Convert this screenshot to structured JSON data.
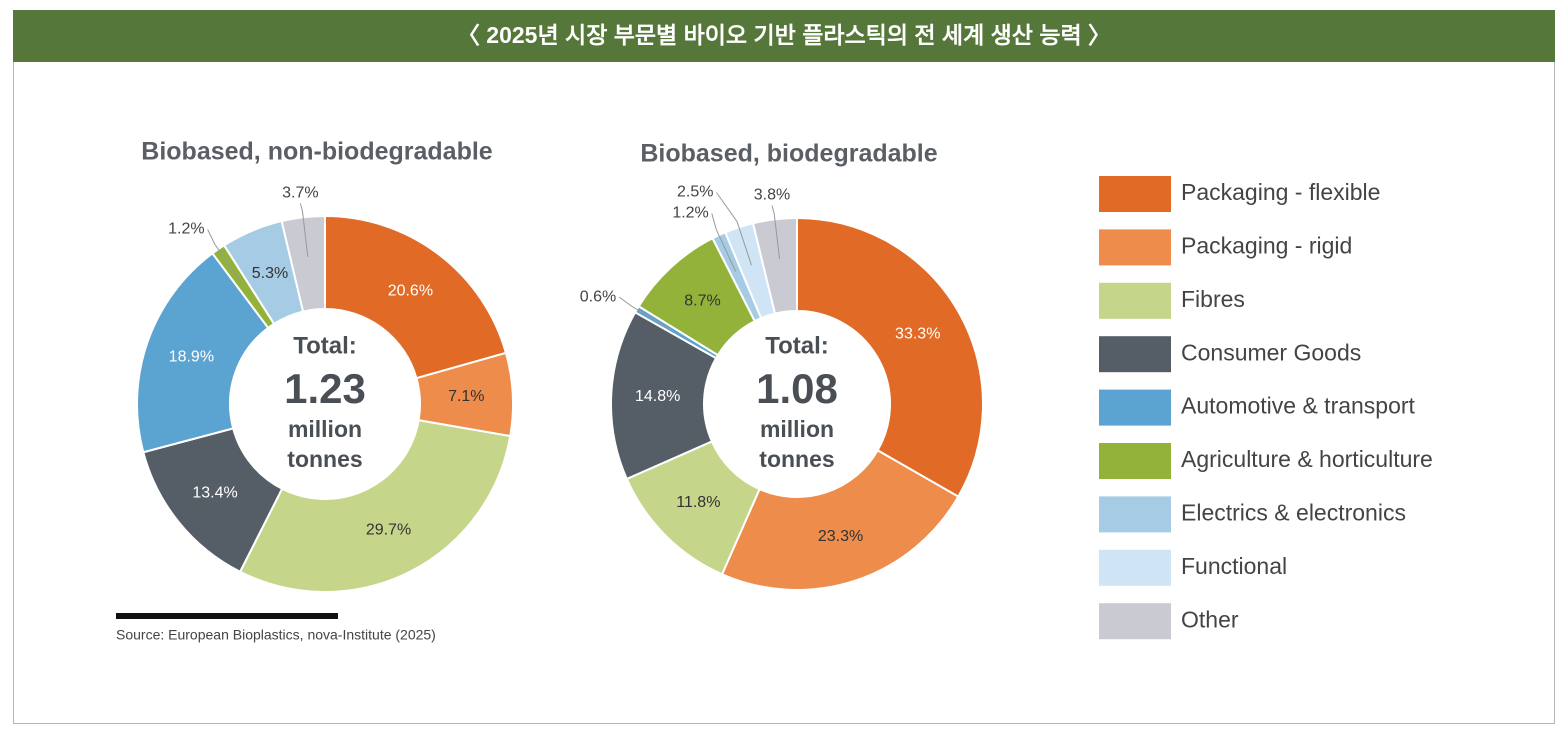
{
  "header": {
    "title": "〈 2025년 시장 부문별 바이오 기반 플라스틱의 전 세계 생산 능력 〉"
  },
  "legend": {
    "categories": [
      "Packaging - flexible",
      "Packaging - rigid",
      "Fibres",
      "Consumer Goods",
      "Automotive & transport",
      "Agriculture & horticulture",
      "Electrics & electronics",
      "Functional",
      "Other"
    ],
    "colors": [
      "#e06a26",
      "#ee8c4b",
      "#c5d58a",
      "#555e66",
      "#5ba3d0",
      "#93b23a",
      "#a6cbe4",
      "#cfe4f4",
      "#cacbd2"
    ]
  },
  "chart_data": [
    {
      "type": "donut",
      "title": "Biobased, non-biodegradable",
      "values": [
        20.6,
        7.1,
        29.7,
        13.4,
        18.9,
        1.2,
        5.3,
        null,
        3.7
      ],
      "value_labels": [
        "20.6%",
        "7.1%",
        "29.7%",
        "13.4%",
        "18.9%",
        "1.2%",
        "5.3%",
        null,
        "3.7%"
      ],
      "center": {
        "label": "Total:",
        "total": 1.23,
        "unit": [
          "million",
          "tonnes"
        ]
      }
    },
    {
      "type": "donut",
      "title": "Biobased, biodegradable",
      "values": [
        33.3,
        23.3,
        11.8,
        14.8,
        0.6,
        8.7,
        1.2,
        2.5,
        3.8
      ],
      "value_labels": [
        "33.3%",
        "23.3%",
        "11.8%",
        "14.8%",
        "0.6%",
        "8.7%",
        "1.2%",
        "2.5%",
        "3.8%"
      ],
      "center": {
        "label": "Total:",
        "total": 1.08,
        "unit": [
          "million",
          "tonnes"
        ]
      }
    }
  ],
  "source": "Source: European Bioplastics, nova-Institute (2025)"
}
